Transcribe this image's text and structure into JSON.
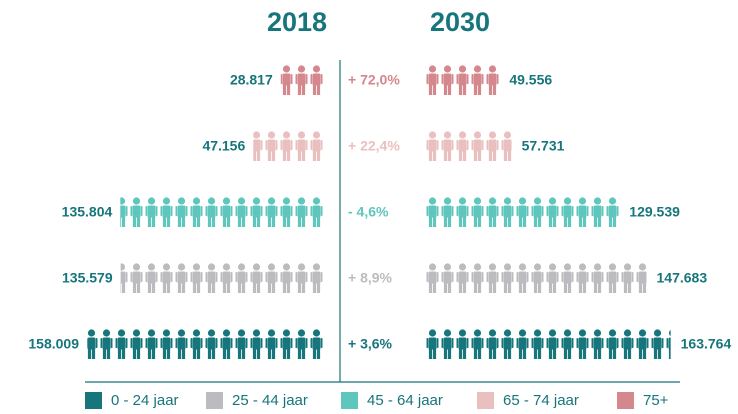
{
  "chart_data": {
    "type": "pictogram",
    "categories": [
      "0 - 24 jaar",
      "25 - 44 jaar",
      "45 - 64 jaar",
      "65 - 74 jaar",
      "75+"
    ],
    "colors": [
      "#17757c",
      "#bcbcc0",
      "#5ec6bd",
      "#eabfbf",
      "#d4878d"
    ],
    "icon_unit": 10000,
    "series": [
      {
        "name": "2018",
        "values": [
          158009,
          135579,
          135804,
          47156,
          28817
        ],
        "value_labels": [
          "158.009",
          "135.579",
          "135.804",
          "47.156",
          "28.817"
        ]
      },
      {
        "name": "2030",
        "values": [
          163764,
          147683,
          129539,
          57731,
          49556
        ],
        "value_labels": [
          "163.764",
          "147.683",
          "129.539",
          "57.731",
          "49.556"
        ]
      }
    ],
    "change": {
      "values": [
        3.6,
        8.9,
        -4.6,
        22.4,
        72.0
      ],
      "value_labels": [
        "+ 3,6%",
        "+ 8,9%",
        "- 4,6%",
        "+ 22,4%",
        "+ 72,0%"
      ]
    }
  }
}
